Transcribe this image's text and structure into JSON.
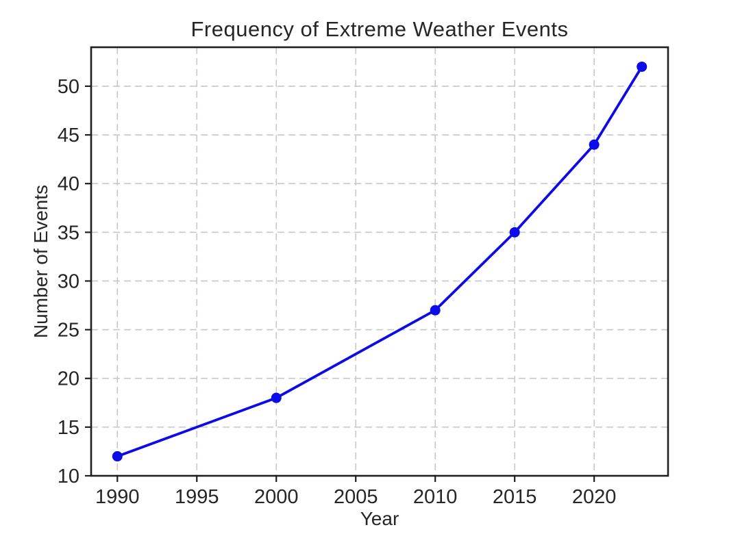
{
  "figure": {
    "background": "#ffffff"
  },
  "chart_data": {
    "type": "line",
    "title": "Frequency of Extreme Weather Events",
    "xlabel": "Year",
    "ylabel": "Number of Events",
    "x": [
      1990,
      2000,
      2010,
      2015,
      2020,
      2023
    ],
    "series": [
      {
        "name": "Number of Events",
        "values": [
          12,
          18,
          27,
          35,
          44,
          52
        ]
      }
    ],
    "x_ticks": [
      1990,
      1995,
      2000,
      2005,
      2010,
      2015,
      2020
    ],
    "y_ticks": [
      10,
      15,
      20,
      25,
      30,
      35,
      40,
      45,
      50
    ],
    "xlim": [
      1988.35,
      2024.65
    ],
    "ylim": [
      10,
      54
    ],
    "grid": true,
    "grid_style": "dashed",
    "legend": "none",
    "colors": {
      "line": "#0b0bea",
      "marker": "#0b0bea",
      "grid": "#c8c8c8",
      "axis": "#1f1f1f",
      "text": "#262626"
    }
  }
}
